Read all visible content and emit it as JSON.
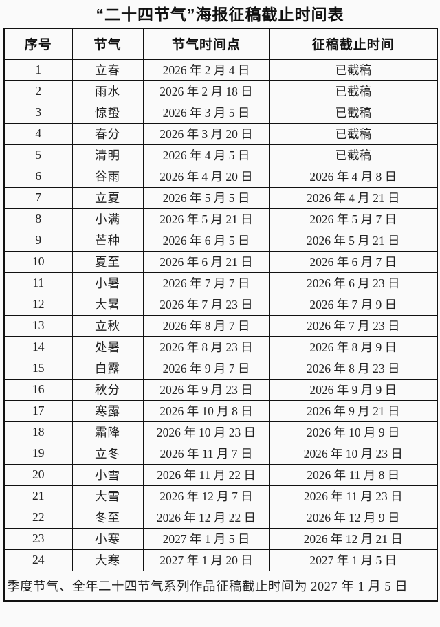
{
  "title": "“二十四节气”海报征稿截止时间表",
  "table": {
    "headers": [
      "序号",
      "节气",
      "节气时间点",
      "征稿截止时间"
    ],
    "rows": [
      [
        "1",
        "立春",
        "2026 年 2 月 4 日",
        "已截稿"
      ],
      [
        "2",
        "雨水",
        "2026 年 2 月 18 日",
        "已截稿"
      ],
      [
        "3",
        "惊蛰",
        "2026 年 3 月 5 日",
        "已截稿"
      ],
      [
        "4",
        "春分",
        "2026 年 3 月 20 日",
        "已截稿"
      ],
      [
        "5",
        "清明",
        "2026 年 4 月 5 日",
        "已截稿"
      ],
      [
        "6",
        "谷雨",
        "2026 年 4 月 20 日",
        "2026 年 4 月 8 日"
      ],
      [
        "7",
        "立夏",
        "2026 年 5 月 5 日",
        "2026 年 4 月 21 日"
      ],
      [
        "8",
        "小满",
        "2026 年 5 月 21 日",
        "2026 年 5 月 7 日"
      ],
      [
        "9",
        "芒种",
        "2026 年 6 月 5 日",
        "2026 年 5 月 21 日"
      ],
      [
        "10",
        "夏至",
        "2026 年 6 月 21 日",
        "2026 年 6 月 7 日"
      ],
      [
        "11",
        "小暑",
        "2026 年 7 月 7 日",
        "2026 年 6 月 23 日"
      ],
      [
        "12",
        "大暑",
        "2026 年 7 月 23 日",
        "2026 年 7 月 9 日"
      ],
      [
        "13",
        "立秋",
        "2026 年 8 月 7 日",
        "2026 年 7 月 23 日"
      ],
      [
        "14",
        "处暑",
        "2026 年 8 月 23 日",
        "2026 年 8 月 9 日"
      ],
      [
        "15",
        "白露",
        "2026 年 9 月 7 日",
        "2026 年 8 月 23 日"
      ],
      [
        "16",
        "秋分",
        "2026 年 9 月 23 日",
        "2026 年 9 月 9 日"
      ],
      [
        "17",
        "寒露",
        "2026 年 10 月 8 日",
        "2026 年 9 月 21 日"
      ],
      [
        "18",
        "霜降",
        "2026 年 10 月 23 日",
        "2026 年 10 月 9 日"
      ],
      [
        "19",
        "立冬",
        "2026 年 11 月 7 日",
        "2026 年 10 月 23 日"
      ],
      [
        "20",
        "小雪",
        "2026 年 11 月 22 日",
        "2026 年 11 月 8 日"
      ],
      [
        "21",
        "大雪",
        "2026 年 12 月 7 日",
        "2026 年 11 月 23 日"
      ],
      [
        "22",
        "冬至",
        "2026 年 12 月 22 日",
        "2026 年 12 月 9 日"
      ],
      [
        "23",
        "小寒",
        "2027 年 1 月 5 日",
        "2026 年 12 月 21 日"
      ],
      [
        "24",
        "大寒",
        "2027 年 1 月 20 日",
        "2027 年 1 月 5 日"
      ]
    ],
    "footer_note": "季度节气、全年二十四节气系列作品征稿截止时间为 2027 年 1 月 5 日"
  },
  "colors": {
    "page_background": "#fafafa",
    "text": "#1c1c1c",
    "border": "#111111"
  }
}
